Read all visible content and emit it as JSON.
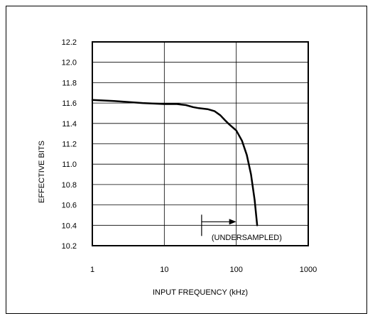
{
  "chart_data": {
    "type": "line",
    "xlabel": "INPUT FREQUENCY (kHz)",
    "ylabel": "EFFECTIVE BITS",
    "x_scale": "log",
    "xlim": [
      1,
      1000
    ],
    "ylim": [
      10.2,
      12.2
    ],
    "x_ticks": [
      1,
      10,
      100,
      1000
    ],
    "x_tick_labels": [
      "1",
      "10",
      "100",
      "1000"
    ],
    "y_ticks": [
      10.2,
      10.4,
      10.6,
      10.8,
      11.0,
      11.2,
      11.4,
      11.6,
      11.8,
      12.0,
      12.2
    ],
    "y_tick_labels": [
      "10.2",
      "10.4",
      "10.6",
      "10.8",
      "11.0",
      "11.2",
      "11.4",
      "11.6",
      "11.8",
      "12.0",
      "12.2"
    ],
    "grid": true,
    "series": [
      {
        "x": [
          1,
          2,
          5,
          10,
          15,
          20,
          25,
          30,
          40,
          50,
          60,
          70,
          80,
          100,
          120,
          140,
          160,
          180,
          195
        ],
        "y": [
          11.63,
          11.62,
          11.6,
          11.59,
          11.59,
          11.58,
          11.56,
          11.55,
          11.54,
          11.52,
          11.48,
          11.43,
          11.39,
          11.33,
          11.23,
          11.09,
          10.9,
          10.65,
          10.4
        ]
      }
    ],
    "annotations": [
      {
        "text": "(UNDERSAMPLED)",
        "arrow_from_x": 33,
        "arrow_to_x": 100
      }
    ]
  }
}
